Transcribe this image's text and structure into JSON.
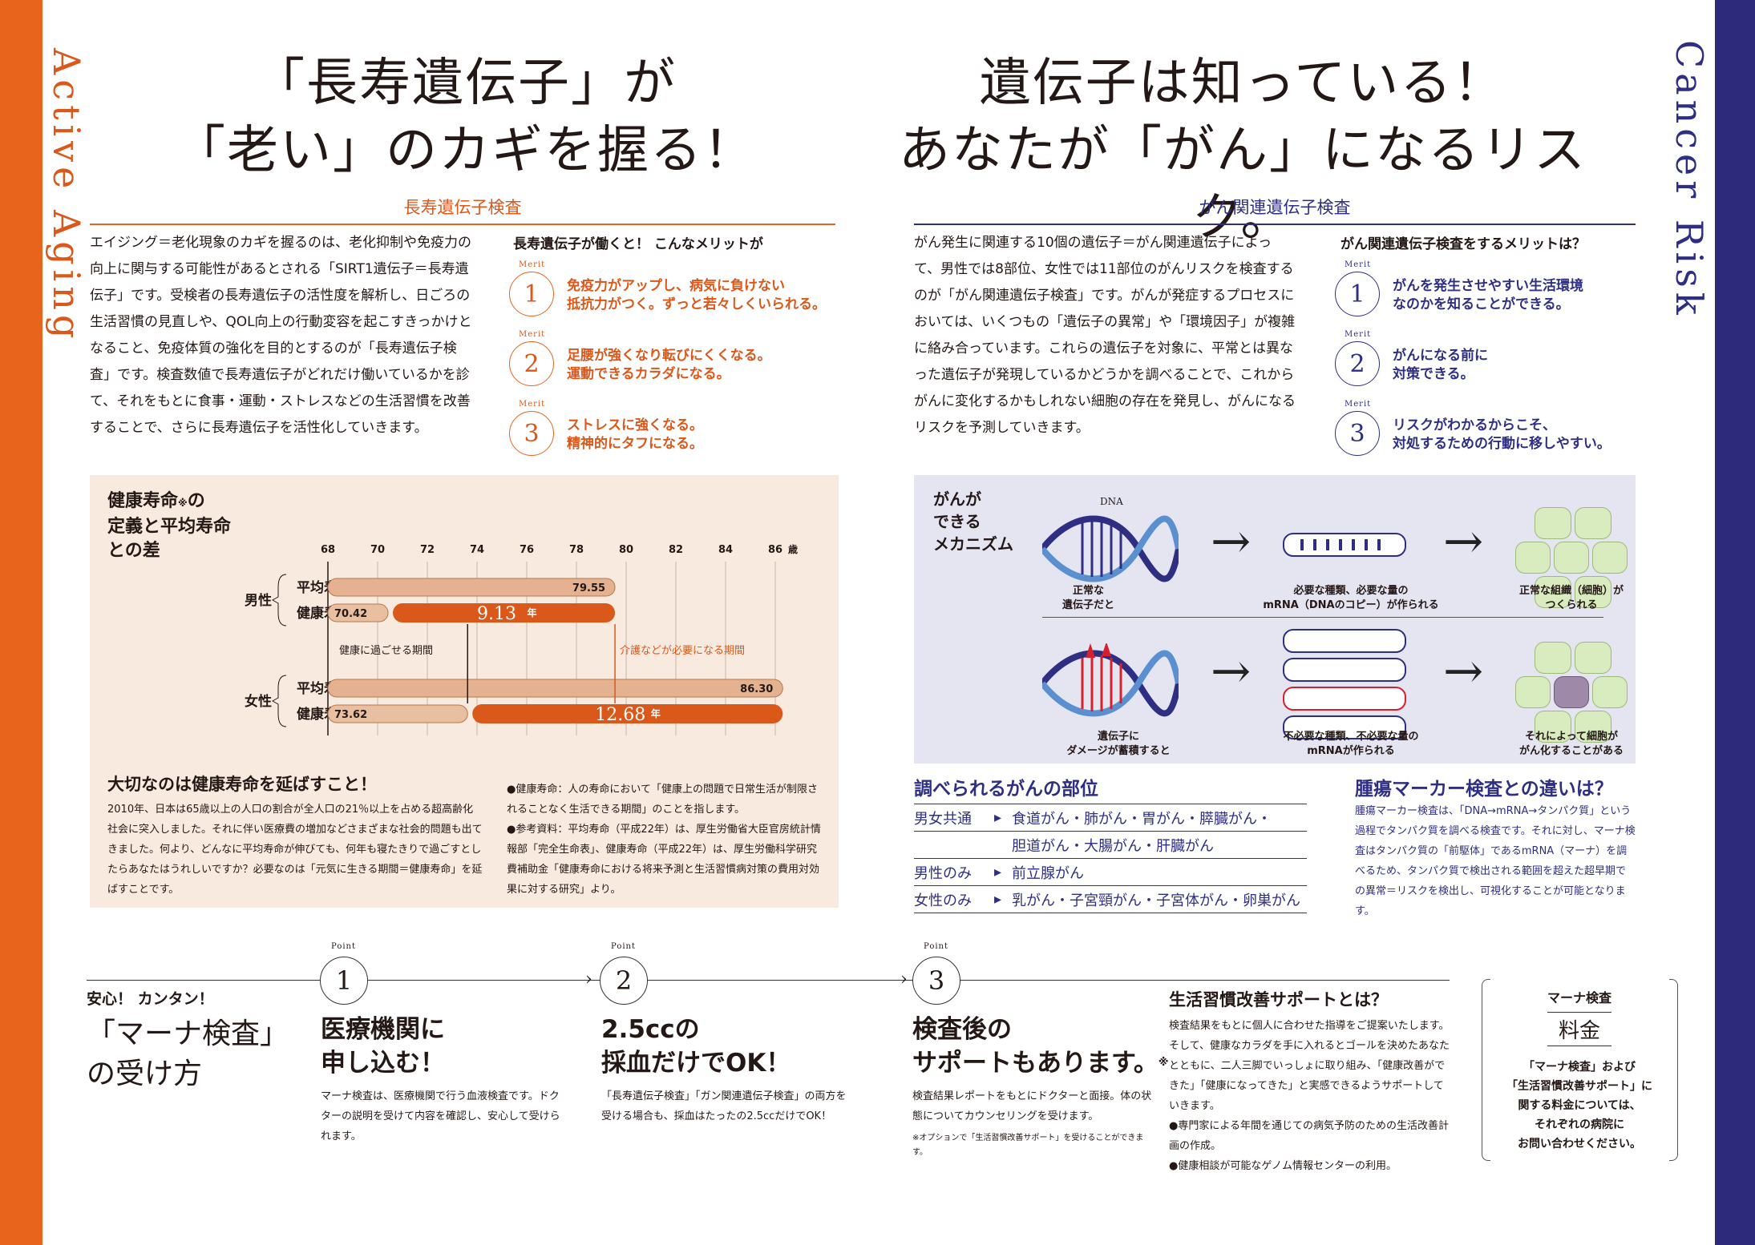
{
  "sidebars": {
    "left_label": "Active Aging",
    "right_label": "Cancer Risk"
  },
  "left": {
    "title_line1": "「長寿遺伝子」が",
    "title_line2": "「老い」のカギを握る！",
    "section_head": "長寿遺伝子検査",
    "body": "エイジング＝老化現象のカギを握るのは、老化抑制や免疫力の向上に関与する可能性があるとされる「SIRT1遺伝子＝長寿遺伝子」です。受検者の長寿遺伝子の活性度を解析し、日ごろの生活習慣の見直しや、QOL向上の行動変容を起こすきっかけとなること、免疫体質の強化を目的とするのが「長寿遺伝子検査」です。検査数値で長寿遺伝子がどれだけ働いているかを診て、それをもとに食事・運動・ストレスなどの生活習慣を改善することで、さらに長寿遺伝子を活性化していきます。",
    "merit_head": "長寿遺伝子が働くと！ こんなメリットが",
    "merit_label": "Merit",
    "merits": [
      {
        "num": "1",
        "line1": "免疫力がアップし、病気に負けない",
        "line2": "抵抗力がつく。ずっと若々しくいられる。"
      },
      {
        "num": "2",
        "line1": "足腰が強くなり転びにくくなる。",
        "line2": "運動できるカラダになる。"
      },
      {
        "num": "3",
        "line1": "ストレスに強くなる。",
        "line2": "精神的にタフになる。"
      }
    ]
  },
  "chart_data": {
    "type": "bar",
    "title_line1": "健康寿命",
    "title_mark": "※",
    "title_line1b": "の",
    "title_line2": "定義と平均寿命",
    "title_line3": "との差",
    "x_ticks": [
      "68",
      "70",
      "72",
      "74",
      "76",
      "78",
      "80",
      "82",
      "84",
      "86"
    ],
    "x_unit": "歳",
    "xlim": [
      68,
      86
    ],
    "groups": [
      {
        "name": "男性",
        "avg_label": "平均寿命",
        "avg": 79.55,
        "avg_text": "79.55",
        "healthy_label": "健康寿命",
        "healthy": 70.42,
        "healthy_text": "70.42",
        "gap_text": "9.13",
        "gap_unit": "年"
      },
      {
        "name": "女性",
        "avg_label": "平均寿命",
        "avg": 86.3,
        "avg_text": "86.30",
        "healthy_label": "健康寿命",
        "healthy": 73.62,
        "healthy_text": "73.62",
        "gap_text": "12.68",
        "gap_unit": "年"
      }
    ],
    "annotation_left": "健康に過ごせる期間",
    "annotation_right": "介護などが必要になる期間"
  },
  "left_box": {
    "subhead": "大切なのは健康寿命を延ばすこと！",
    "text": "2010年、日本は65歳以上の人口の割合が全人口の21％以上を占める超高齢化社会に突入しました。それに伴い医療費の増加などさまざまな社会的問題も出てきました。何より、どんなに平均寿命が伸びても、何年も寝たきりで過ごすとしたらあなたはうれしいですか？必要なのは「元気に生きる期間＝健康寿命」を延ばすことです。",
    "note1": "●健康寿命：人の寿命において「健康上の問題で日常生活が制限されることなく生活できる期間」のことを指します。",
    "note2": "●参考資料：平均寿命（平成22年）は、厚生労働省大臣官房統計情報部「完全生命表」、健康寿命（平成22年）は、厚生労働科学研究費補助金「健康寿命における将来予測と生活習慣病対策の費用対効果に対する研究」より。"
  },
  "right": {
    "title_line1": "遺伝子は知っている！",
    "title_line2": "あなたが「がん」になるリスク。",
    "section_head": "がん関連遺伝子検査",
    "body": "がん発生に関連する10個の遺伝子＝がん関連遺伝子によって、男性では8部位、女性では11部位のがんリスクを検査するのが「がん関連遺伝子検査」です。がんが発症するプロセスにおいては、いくつもの「遺伝子の異常」や「環境因子」が複雑に絡み合っています。これらの遺伝子を対象に、平常とは異なった遺伝子が発現しているかどうかを調べることで、これからがんに変化するかもしれない細胞の存在を発見し、がんになるリスクを予測していきます。",
    "merit_head": "がん関連遺伝子検査をするメリットは？",
    "merit_label": "Merit",
    "merits": [
      {
        "num": "1",
        "line1": "がんを発生させやすい生活環境",
        "line2": "なのかを知ることができる。"
      },
      {
        "num": "2",
        "line1": "がんになる前に",
        "line2": "対策できる。"
      },
      {
        "num": "3",
        "line1": "リスクがわかるからこそ、",
        "line2": "対処するための行動に移しやすい。"
      }
    ]
  },
  "mechanism": {
    "title_line1": "がんが",
    "title_line2": "できる",
    "title_line3": "メカニズム",
    "dna_label": "DNA",
    "normal_gene_line1": "正常な",
    "normal_gene_line2": "遺伝子だと",
    "normal_mrna_line1": "必要な種類、必要な量の",
    "normal_mrna_line2": "mRNA（DNAのコピー）が作られる",
    "normal_tissue_line1": "正常な組織（細胞）が",
    "normal_tissue_line2": "つくられる",
    "damaged_gene_line1": "遺伝子に",
    "damaged_gene_line2": "ダメージが蓄積すると",
    "bad_mrna_line1": "不必要な種類、不必要な量の",
    "bad_mrna_line2": "mRNAが作られる",
    "cancer_line1": "それによって細胞が",
    "cancer_line2": "がん化することがある"
  },
  "sites": {
    "head": "調べられるがんの部位",
    "rows": [
      {
        "label": "男女共通",
        "items": "食道がん・肺がん・胃がん・膵臓がん・"
      },
      {
        "label": "",
        "items": "胆道がん・大腸がん・肝臓がん"
      },
      {
        "label": "男性のみ",
        "items": "前立腺がん"
      },
      {
        "label": "女性のみ",
        "items": "乳がん・子宮頸がん・子宮体がん・卵巣がん"
      }
    ]
  },
  "tumor": {
    "head": "腫瘍マーカー検査との違いは？",
    "text": "腫瘍マーカー検査は、「DNA→mRNA→タンパク質」という過程でタンパク質を調べる検査です。それに対し、マーナ検査はタンパク質の「前駆体」であるmRNA（マーナ）を調べるため、タンパク質で検出される範囲を超えた超早期での異常＝リスクを検出し、可視化することが可能となります。"
  },
  "howto": {
    "kicker": "安心！ カンタン！",
    "title_line1": "「マーナ検査」",
    "title_line2": "の受け方",
    "point_label": "Point",
    "steps": [
      {
        "num": "1",
        "head_line1": "医療機関に",
        "head_line2": "申し込む！",
        "mark": "",
        "text": "マーナ検査は、医療機関で行う血液検査です。ドクターの説明を受けて内容を確認し、安心して受けられます。",
        "note": ""
      },
      {
        "num": "2",
        "head_line1": "2.5ccの",
        "head_line2": "採血だけでOK！",
        "mark": "",
        "text": "「長寿遺伝子検査」「ガン関連遺伝子検査」の両方を受ける場合も、採血はたったの2.5ccだけでOK！",
        "note": ""
      },
      {
        "num": "3",
        "head_line1": "検査後の",
        "head_line2": "サポートもあります。",
        "mark": "※",
        "text": "検査結果レポートをもとにドクターと面接。体の状態についてカウンセリングを受けます。",
        "note": "※オプションで「生活習慣改善サポート」を受けることができます。"
      }
    ]
  },
  "support": {
    "head": "生活習慣改善サポートとは？",
    "text": "検査結果をもとに個人に合わせた指導をご提案いたします。そして、健康なカラダを手に入れるとゴールを決めたあなたとともに、二人三脚でいっしょに取り組み、「健康改善ができた」「健康になってきた」と実感できるようサポートしていきます。",
    "bullet1": "●専門家による年間を通じての病気予防のための生活改善計画の作成。",
    "bullet2": "●健康相談が可能なゲノム情報センターの利用。"
  },
  "price": {
    "kicker": "マーナ検査",
    "head": "料金",
    "text_line1": "「マーナ検査」および",
    "text_line2": "「生活習慣改善サポート」に",
    "text_line3": "関する料金については、",
    "text_line4": "それぞれの病院に",
    "text_line5": "お問い合わせください。"
  }
}
